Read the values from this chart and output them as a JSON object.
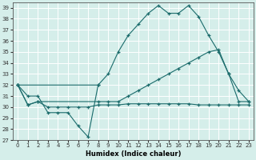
{
  "xlabel": "Humidex (Indice chaleur)",
  "bg_color": "#d5eeea",
  "line_color": "#1a6b6b",
  "grid_color": "#ffffff",
  "xlim": [
    -0.5,
    23.5
  ],
  "ylim": [
    27,
    39.5
  ],
  "yticks": [
    27,
    28,
    29,
    30,
    31,
    32,
    33,
    34,
    35,
    36,
    37,
    38,
    39
  ],
  "xticks": [
    0,
    1,
    2,
    3,
    4,
    5,
    6,
    7,
    8,
    9,
    10,
    11,
    12,
    13,
    14,
    15,
    16,
    17,
    18,
    19,
    20,
    21,
    22,
    23
  ],
  "line1_x": [
    0,
    1,
    2,
    3,
    4,
    5,
    6,
    7,
    8
  ],
  "line1_y": [
    32,
    31,
    31,
    29.5,
    29.5,
    29.5,
    28.3,
    27.3,
    32
  ],
  "line2_x": [
    0,
    8,
    9,
    10,
    11,
    12,
    13,
    14,
    15,
    16,
    17,
    18,
    19,
    20,
    21,
    22,
    23
  ],
  "line2_y": [
    32,
    32,
    33,
    35,
    36.5,
    37.5,
    38.5,
    39.2,
    38.5,
    38.5,
    39.2,
    38.2,
    36.5,
    35.0,
    33.0,
    31.5,
    30.5
  ],
  "line3_x": [
    0,
    1,
    2,
    8,
    9,
    10,
    11,
    12,
    13,
    14,
    15,
    16,
    17,
    18,
    19,
    20,
    21,
    22,
    23
  ],
  "line3_y": [
    32,
    30.2,
    30.5,
    30.5,
    30.5,
    30.5,
    31.0,
    31.5,
    32.0,
    32.5,
    33.0,
    33.5,
    34.0,
    34.5,
    35.0,
    35.2,
    33.0,
    30.5,
    30.5
  ],
  "line4_x": [
    0,
    1,
    2,
    3,
    4,
    5,
    6,
    7,
    8,
    9,
    10,
    11,
    12,
    13,
    14,
    15,
    16,
    17,
    18,
    19,
    20,
    21,
    22,
    23
  ],
  "line4_y": [
    32,
    30.2,
    30.5,
    30.0,
    30.0,
    30.0,
    30.0,
    30.0,
    30.2,
    30.2,
    30.2,
    30.3,
    30.3,
    30.3,
    30.3,
    30.3,
    30.3,
    30.3,
    30.2,
    30.2,
    30.2,
    30.2,
    30.2,
    30.2
  ]
}
